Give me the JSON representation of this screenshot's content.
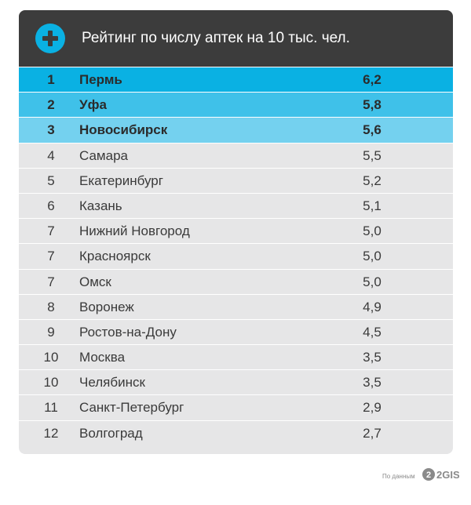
{
  "chart_data": {
    "type": "table",
    "title": "Рейтинг по числу аптек на 10 тыс. чел.",
    "columns": [
      "rank",
      "city",
      "value"
    ],
    "rows": [
      {
        "rank": "1",
        "city": "Пермь",
        "value": "6,2"
      },
      {
        "rank": "2",
        "city": "Уфа",
        "value": "5,8"
      },
      {
        "rank": "3",
        "city": "Новосибирск",
        "value": "5,6"
      },
      {
        "rank": "4",
        "city": "Самара",
        "value": "5,5"
      },
      {
        "rank": "5",
        "city": "Екатеринбург",
        "value": "5,2"
      },
      {
        "rank": "6",
        "city": "Казань",
        "value": "5,1"
      },
      {
        "rank": "7",
        "city": "Нижний Новгород",
        "value": "5,0"
      },
      {
        "rank": "7",
        "city": "Красноярск",
        "value": "5,0"
      },
      {
        "rank": "7",
        "city": "Омск",
        "value": "5,0"
      },
      {
        "rank": "8",
        "city": "Воронеж",
        "value": "4,9"
      },
      {
        "rank": "9",
        "city": "Ростов-на-Дону",
        "value": "4,5"
      },
      {
        "rank": "10",
        "city": "Москва",
        "value": "3,5"
      },
      {
        "rank": "10",
        "city": "Челябинск",
        "value": "3,5"
      },
      {
        "rank": "11",
        "city": "Санкт-Петербург",
        "value": "2,9"
      },
      {
        "rank": "12",
        "city": "Волгоград",
        "value": "2,7"
      }
    ],
    "highlight_top": 3
  },
  "colors": {
    "header_bg": "#3c3c3c",
    "accent": "#0ab1e3",
    "row_1": "#0ab1e3",
    "row_2": "#3fc1e9",
    "row_3": "#74d1ef",
    "row_default": "#e6e6e7"
  },
  "header": {
    "icon": "plus-icon"
  },
  "footer": {
    "source_label": "По данным",
    "logo_text": "2GIS",
    "logo_icon": "2gis-logo"
  }
}
